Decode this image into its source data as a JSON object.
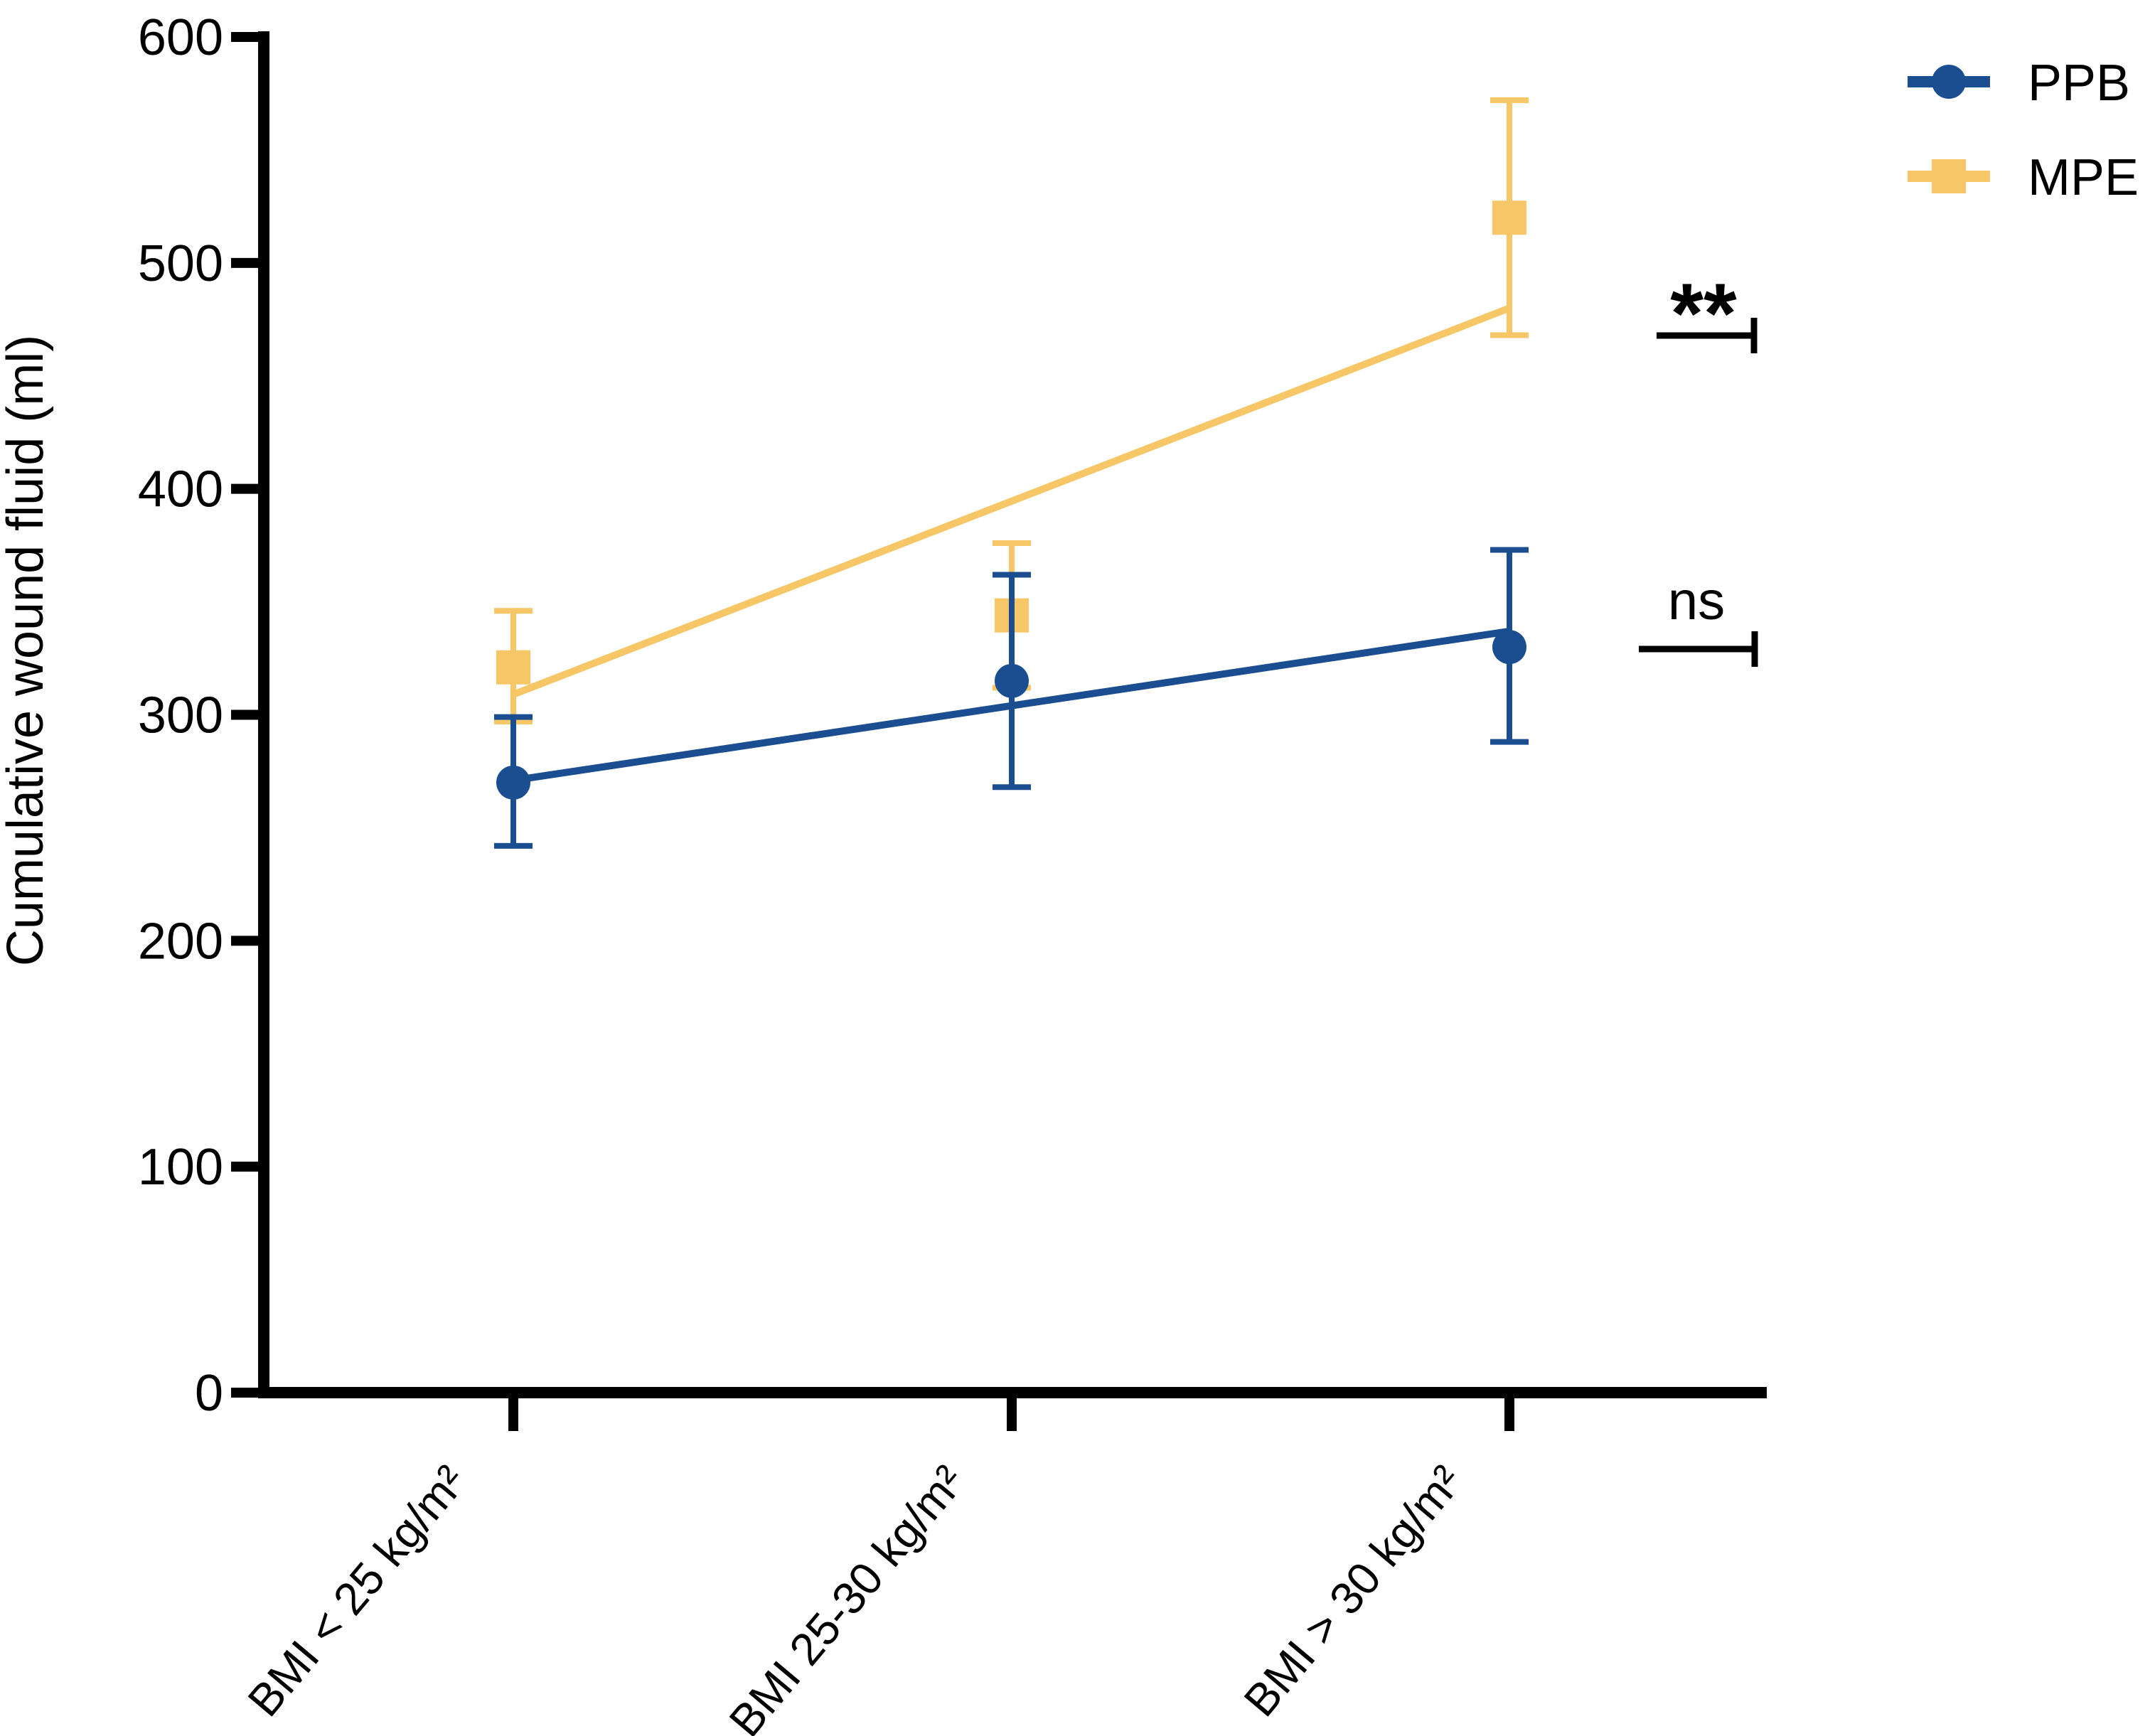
{
  "chart_data": {
    "type": "line",
    "title": "",
    "xlabel": "",
    "ylabel": "Cumulative wound fluid (ml)",
    "categories": [
      "BMI < 25 kg/m²",
      "BMI 25-30 kg/m²",
      "BMI > 30 kg/m²"
    ],
    "ylim": [
      0,
      600
    ],
    "yticks": [
      0,
      100,
      200,
      300,
      400,
      500,
      600
    ],
    "grid": false,
    "legend_position": "top-right",
    "series": [
      {
        "name": "PPB",
        "marker": "circle",
        "color": "#1b4e91",
        "values": [
          270,
          315,
          330
        ],
        "error_low": [
          242,
          268,
          288
        ],
        "error_high": [
          299,
          362,
          373
        ],
        "trend_line": [
          271,
          337
        ]
      },
      {
        "name": "MPE",
        "marker": "square",
        "color": "#f6c667",
        "values": [
          321,
          344,
          520
        ],
        "error_low": [
          297,
          312,
          468
        ],
        "error_high": [
          346,
          376,
          572
        ],
        "trend_line": [
          309,
          480
        ]
      }
    ],
    "annotations": [
      {
        "label": "**",
        "series": "MPE",
        "y_value": 468
      },
      {
        "label": "ns",
        "series": "PPB",
        "y_value": 329
      }
    ]
  }
}
